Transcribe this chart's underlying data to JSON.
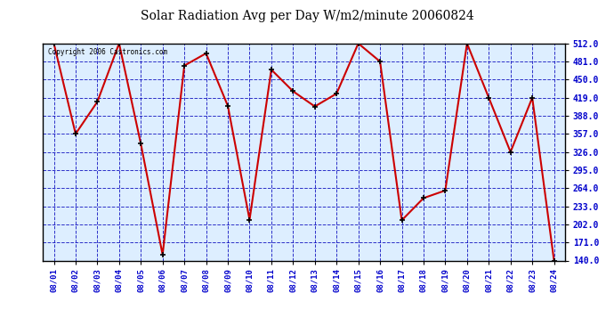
{
  "title": "Solar Radiation Avg per Day W/m2/minute 20060824",
  "copyright": "Copyright 2006 Castronics.com",
  "dates": [
    "08/01",
    "08/02",
    "08/03",
    "08/04",
    "08/05",
    "08/06",
    "08/07",
    "08/08",
    "08/09",
    "08/10",
    "08/11",
    "08/12",
    "08/13",
    "08/14",
    "08/15",
    "08/16",
    "08/17",
    "08/18",
    "08/19",
    "08/20",
    "08/21",
    "08/22",
    "08/23",
    "08/24"
  ],
  "values": [
    512,
    357,
    412,
    512,
    340,
    150,
    474,
    495,
    405,
    210,
    467,
    430,
    404,
    426,
    512,
    481,
    209,
    247,
    260,
    512,
    419,
    326,
    419,
    140
  ],
  "line_color": "#cc0000",
  "marker_color": "#000000",
  "bg_color": "#ddeeff",
  "grid_color": "#0000bb",
  "title_color": "#000000",
  "copyright_color": "#000000",
  "axis_label_color": "#0000cc",
  "ytick_values": [
    140.0,
    171.0,
    202.0,
    233.0,
    264.0,
    295.0,
    326.0,
    357.0,
    388.0,
    419.0,
    450.0,
    481.0,
    512.0
  ],
  "ymin": 140.0,
  "ymax": 512.0,
  "figwidth": 6.9,
  "figheight": 3.75,
  "dpi": 100
}
